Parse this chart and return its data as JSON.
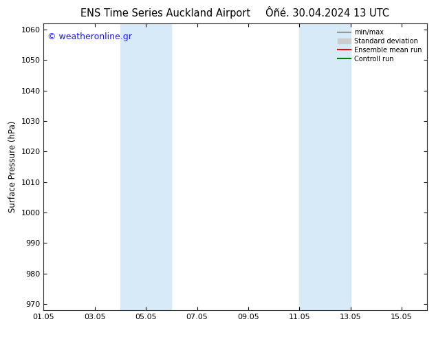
{
  "title_left": "ENS Time Series Auckland Airport",
  "title_right": "Ôñé. 30.04.2024 13 UTC",
  "ylabel": "Surface Pressure (hPa)",
  "ylim": [
    968,
    1062
  ],
  "yticks": [
    970,
    980,
    990,
    1000,
    1010,
    1020,
    1030,
    1040,
    1050,
    1060
  ],
  "xlim": [
    0,
    15
  ],
  "xtick_labels": [
    "01.05",
    "03.05",
    "05.05",
    "07.05",
    "09.05",
    "11.05",
    "13.05",
    "15.05"
  ],
  "xtick_positions": [
    0,
    2,
    4,
    6,
    8,
    10,
    12,
    14
  ],
  "blue_bands": [
    {
      "x_start": 3.0,
      "x_end": 5.0
    },
    {
      "x_start": 10.0,
      "x_end": 12.0
    }
  ],
  "band_color": "#d6eaf8",
  "watermark_text": "© weatheronline.gr",
  "watermark_color": "#1a1aff",
  "legend_items": [
    {
      "label": "min/max",
      "color": "#999999",
      "lw": 1.5
    },
    {
      "label": "Standard deviation",
      "color": "#cccccc",
      "lw": 6
    },
    {
      "label": "Ensemble mean run",
      "color": "#ff0000",
      "lw": 1.5
    },
    {
      "label": "Controll run",
      "color": "#008000",
      "lw": 1.5
    }
  ],
  "bg_color": "#ffffff",
  "title_fontsize": 10.5,
  "ylabel_fontsize": 8.5,
  "tick_fontsize": 8,
  "watermark_fontsize": 9
}
